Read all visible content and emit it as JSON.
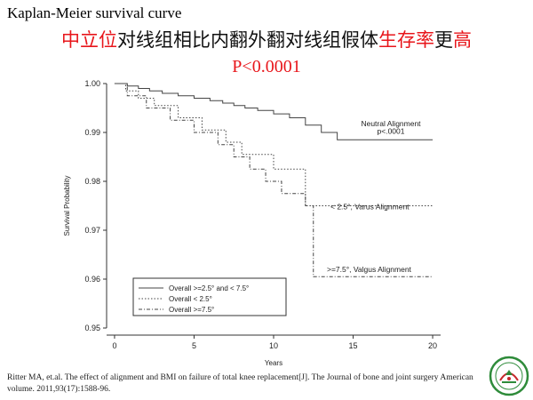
{
  "slide": {
    "title": "Kaplan-Meier survival curve",
    "headline_parts": [
      {
        "text": "中立位",
        "color": "#e8161b"
      },
      {
        "text": "对线组相比内翻外翻对线组假体",
        "color": "#111111"
      },
      {
        "text": "生存率",
        "color": "#e8161b"
      },
      {
        "text": "更",
        "color": "#111111"
      },
      {
        "text": "高",
        "color": "#e8161b"
      }
    ],
    "pvalue": "P<0.0001",
    "citation": "Ritter MA, et.al. The effect of alignment and BMI on failure of total knee replacement[J]. The Journal of bone and joint surgery American volume. 2011,93(17):1588-96.",
    "logo_icon": "university-seal-icon"
  },
  "chart_data": {
    "type": "line",
    "step": true,
    "xlabel": "Years",
    "ylabel": "Survival Probability",
    "xlim": [
      -0.5,
      20.5
    ],
    "ylim": [
      0.95,
      1.0
    ],
    "xticks": [
      0,
      5,
      10,
      15,
      20
    ],
    "xtick_labels": [
      "0",
      "5",
      "10",
      "15",
      "20"
    ],
    "yticks": [
      0.95,
      0.96,
      0.97,
      0.98,
      0.99,
      1.0
    ],
    "ytick_labels": [
      "0.95",
      "0.96",
      "0.97",
      "0.98",
      "0.99",
      "1.00"
    ],
    "grid": false,
    "legend_position": "bottom-left",
    "series": [
      {
        "name": "Overall >=2.5° and < 7.5°",
        "dash": "solid",
        "x": [
          0,
          0.8,
          1.5,
          2.2,
          3.0,
          4.0,
          5.0,
          6.0,
          6.8,
          7.5,
          8.2,
          9.0,
          10.0,
          11.0,
          12.0,
          13.0,
          14.0,
          20.0
        ],
        "y": [
          1.0,
          0.9995,
          0.999,
          0.9985,
          0.998,
          0.9975,
          0.997,
          0.9965,
          0.996,
          0.9955,
          0.995,
          0.9945,
          0.9938,
          0.993,
          0.9915,
          0.99,
          0.9885,
          0.9885
        ]
      },
      {
        "name": "Overall < 2.5°",
        "dash": "dotted",
        "x": [
          0,
          0.7,
          1.5,
          2.5,
          4.0,
          5.5,
          7.0,
          8.0,
          10.0,
          12.0,
          20.0
        ],
        "y": [
          1.0,
          0.9985,
          0.997,
          0.9955,
          0.993,
          0.9905,
          0.988,
          0.9855,
          0.9825,
          0.975,
          0.975
        ]
      },
      {
        "name": "Overall >=7.5°",
        "dash": "dashdot",
        "x": [
          0,
          0.8,
          2.0,
          3.5,
          5.0,
          6.5,
          7.5,
          8.5,
          9.5,
          10.5,
          12.0,
          12.5,
          20.0
        ],
        "y": [
          1.0,
          0.9975,
          0.995,
          0.9925,
          0.99,
          0.9875,
          0.985,
          0.9825,
          0.98,
          0.9775,
          0.975,
          0.9605,
          0.9605
        ]
      }
    ],
    "annotations": [
      {
        "text": "Neutral Alignment",
        "series": 0
      },
      {
        "text": "p<.0001",
        "series": 0
      },
      {
        "text": "< 2.5°, Varus  Alignment",
        "series": 1
      },
      {
        "text": ">=7.5°, Valgus Alignment",
        "series": 2
      }
    ]
  }
}
